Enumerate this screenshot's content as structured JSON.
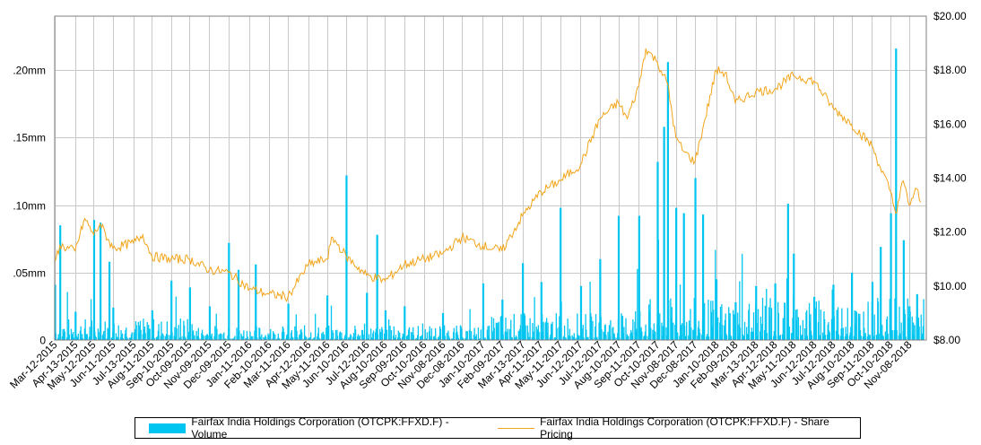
{
  "chart_data": {
    "type": "bar+line",
    "title": "",
    "x_tick_labels": [
      "Mar-12-2015",
      "Apr-13-2015",
      "May-12-2015",
      "Jun-11-2015",
      "Jul-13-2015",
      "Aug-11-2015",
      "Sep-10-2015",
      "Oct-09-2015",
      "Nov-09-2015",
      "Dec-09-2015",
      "Jan-11-2016",
      "Feb-10-2016",
      "Mar-11-2016",
      "Apr-12-2016",
      "May-11-2016",
      "Jun-10-2016",
      "Jul-12-2016",
      "Aug-10-2016",
      "Sep-09-2016",
      "Oct-10-2016",
      "Nov-08-2016",
      "Dec-08-2016",
      "Jan-10-2017",
      "Feb-09-2017",
      "Mar-13-2017",
      "Apr-11-2017",
      "May-11-2017",
      "Jun-12-2017",
      "Jul-12-2017",
      "Aug-10-2017",
      "Sep-11-2017",
      "Oct-10-2017",
      "Nov-08-2017",
      "Dec-08-2017",
      "Jan-10-2018",
      "Feb-09-2018",
      "Mar-13-2018",
      "Apr-12-2018",
      "May-11-2018",
      "Jun-12-2018",
      "Jul-12-2018",
      "Aug-10-2018",
      "Sep-11-2018",
      "Oct-10-2018",
      "Nov-08-2018"
    ],
    "y_left": {
      "ticks": [
        0,
        0.05,
        0.1,
        0.15,
        0.2
      ],
      "tick_labels": [
        "0",
        ".05mm",
        ".10mm",
        ".15mm",
        ".20mm"
      ],
      "range": [
        0,
        0.24
      ],
      "unit": "mm"
    },
    "y_right": {
      "ticks": [
        8,
        10,
        12,
        14,
        16,
        18,
        20
      ],
      "tick_labels": [
        "$8.00",
        "$10.00",
        "$12.00",
        "$14.00",
        "$16.00",
        "$18.00",
        "$20.00"
      ],
      "range": [
        8,
        20
      ]
    },
    "grid": true,
    "legend_placement": "bottom",
    "series": [
      {
        "name": "Fairfax India Holdings Corporation (OTCPK:FFXD.F) - Volume",
        "type": "bar",
        "axis": "left",
        "color": "#00c5f0",
        "spikes": [
          {
            "x": "Mar-12-2015",
            "value": 0.041
          },
          {
            "x": "Mar-20-2015",
            "value": 0.085
          },
          {
            "x": "Apr-13-2015",
            "value": 0.021
          },
          {
            "x": "May-12-2015",
            "value": 0.089
          },
          {
            "x": "May-22-2015",
            "value": 0.087
          },
          {
            "x": "Jun-05-2015",
            "value": 0.058
          },
          {
            "x": "Jun-11-2015",
            "value": 0.024
          },
          {
            "x": "Aug-11-2015",
            "value": 0.022
          },
          {
            "x": "Sep-10-2015",
            "value": 0.044
          },
          {
            "x": "Oct-09-2015",
            "value": 0.039
          },
          {
            "x": "Nov-09-2015",
            "value": 0.025
          },
          {
            "x": "Dec-09-2015",
            "value": 0.072
          },
          {
            "x": "Dec-24-2015",
            "value": 0.052
          },
          {
            "x": "Jan-20-2016",
            "value": 0.056
          },
          {
            "x": "Mar-11-2016",
            "value": 0.027
          },
          {
            "x": "May-11-2016",
            "value": 0.033
          },
          {
            "x": "Jun-10-2016",
            "value": 0.122
          },
          {
            "x": "Jul-12-2016",
            "value": 0.035
          },
          {
            "x": "Jul-28-2016",
            "value": 0.078
          },
          {
            "x": "Aug-10-2016",
            "value": 0.022
          },
          {
            "x": "Sep-09-2016",
            "value": 0.025
          },
          {
            "x": "Nov-08-2016",
            "value": 0.02
          },
          {
            "x": "Jan-10-2017",
            "value": 0.042
          },
          {
            "x": "Feb-09-2017",
            "value": 0.03
          },
          {
            "x": "Mar-13-2017",
            "value": 0.057
          },
          {
            "x": "Apr-11-2017",
            "value": 0.043
          },
          {
            "x": "May-11-2017",
            "value": 0.098
          },
          {
            "x": "Jun-12-2017",
            "value": 0.04
          },
          {
            "x": "Jul-12-2017",
            "value": 0.06
          },
          {
            "x": "Aug-10-2017",
            "value": 0.092
          },
          {
            "x": "Sep-11-2017",
            "value": 0.092
          },
          {
            "x": "Oct-10-2017",
            "value": 0.132
          },
          {
            "x": "Oct-20-2017",
            "value": 0.158
          },
          {
            "x": "Oct-26-2017",
            "value": 0.206
          },
          {
            "x": "Nov-08-2017",
            "value": 0.098
          },
          {
            "x": "Nov-20-2017",
            "value": 0.094
          },
          {
            "x": "Dec-08-2017",
            "value": 0.12
          },
          {
            "x": "Dec-20-2017",
            "value": 0.093
          },
          {
            "x": "Jan-10-2018",
            "value": 0.045
          },
          {
            "x": "Feb-09-2018",
            "value": 0.028
          },
          {
            "x": "Mar-13-2018",
            "value": 0.04
          },
          {
            "x": "Apr-12-2018",
            "value": 0.042
          },
          {
            "x": "May-02-2018",
            "value": 0.101
          },
          {
            "x": "May-11-2018",
            "value": 0.064
          },
          {
            "x": "Jun-12-2018",
            "value": 0.032
          },
          {
            "x": "Jul-12-2018",
            "value": 0.041
          },
          {
            "x": "Aug-10-2018",
            "value": 0.05
          },
          {
            "x": "Sep-11-2018",
            "value": 0.043
          },
          {
            "x": "Sep-24-2018",
            "value": 0.069
          },
          {
            "x": "Oct-10-2018",
            "value": 0.094
          },
          {
            "x": "Oct-18-2018",
            "value": 0.216
          },
          {
            "x": "Oct-30-2018",
            "value": 0.074
          },
          {
            "x": "Nov-08-2018",
            "value": 0.025
          },
          {
            "x": "Nov-20-2018",
            "value": 0.034
          }
        ]
      },
      {
        "name": "Fairfax India Holdings Corporation (OTCPK:FFXD.F) - Share Pricing",
        "type": "line",
        "axis": "right",
        "color": "#f2a51a",
        "points": [
          {
            "x": "Mar-12-2015",
            "y": 10.9
          },
          {
            "x": "Mar-20-2015",
            "y": 11.5
          },
          {
            "x": "Apr-13-2015",
            "y": 11.3
          },
          {
            "x": "Apr-28-2015",
            "y": 12.5
          },
          {
            "x": "May-12-2015",
            "y": 11.9
          },
          {
            "x": "May-22-2015",
            "y": 12.3
          },
          {
            "x": "Jun-11-2015",
            "y": 11.4
          },
          {
            "x": "Jul-13-2015",
            "y": 11.6
          },
          {
            "x": "Jul-28-2015",
            "y": 11.9
          },
          {
            "x": "Aug-11-2015",
            "y": 11.1
          },
          {
            "x": "Sep-10-2015",
            "y": 11.0
          },
          {
            "x": "Oct-09-2015",
            "y": 11.0
          },
          {
            "x": "Nov-09-2015",
            "y": 10.6
          },
          {
            "x": "Dec-09-2015",
            "y": 10.5
          },
          {
            "x": "Jan-11-2016",
            "y": 9.9
          },
          {
            "x": "Feb-10-2016",
            "y": 9.7
          },
          {
            "x": "Mar-11-2016",
            "y": 9.6
          },
          {
            "x": "Apr-12-2016",
            "y": 10.8
          },
          {
            "x": "May-11-2016",
            "y": 11.0
          },
          {
            "x": "May-20-2016",
            "y": 11.8
          },
          {
            "x": "Jun-10-2016",
            "y": 11.1
          },
          {
            "x": "Jul-12-2016",
            "y": 10.4
          },
          {
            "x": "Aug-10-2016",
            "y": 10.2
          },
          {
            "x": "Sep-09-2016",
            "y": 10.8
          },
          {
            "x": "Oct-10-2016",
            "y": 11.0
          },
          {
            "x": "Nov-08-2016",
            "y": 11.2
          },
          {
            "x": "Dec-08-2016",
            "y": 11.8
          },
          {
            "x": "Jan-10-2017",
            "y": 11.5
          },
          {
            "x": "Feb-09-2017",
            "y": 11.3
          },
          {
            "x": "Mar-13-2017",
            "y": 12.6
          },
          {
            "x": "Apr-11-2017",
            "y": 13.5
          },
          {
            "x": "May-11-2017",
            "y": 13.9
          },
          {
            "x": "Jun-12-2017",
            "y": 14.5
          },
          {
            "x": "Jul-12-2017",
            "y": 16.2
          },
          {
            "x": "Aug-10-2017",
            "y": 16.8
          },
          {
            "x": "Aug-24-2017",
            "y": 16.2
          },
          {
            "x": "Sep-11-2017",
            "y": 17.4
          },
          {
            "x": "Sep-22-2017",
            "y": 18.8
          },
          {
            "x": "Oct-10-2017",
            "y": 18.3
          },
          {
            "x": "Oct-26-2017",
            "y": 17.5
          },
          {
            "x": "Nov-08-2017",
            "y": 15.5
          },
          {
            "x": "Nov-20-2017",
            "y": 15.0
          },
          {
            "x": "Dec-08-2017",
            "y": 14.6
          },
          {
            "x": "Dec-20-2017",
            "y": 15.8
          },
          {
            "x": "Jan-10-2018",
            "y": 18.0
          },
          {
            "x": "Jan-24-2018",
            "y": 17.9
          },
          {
            "x": "Feb-09-2018",
            "y": 16.8
          },
          {
            "x": "Mar-13-2018",
            "y": 17.2
          },
          {
            "x": "Apr-12-2018",
            "y": 17.3
          },
          {
            "x": "May-11-2018",
            "y": 17.8
          },
          {
            "x": "Jun-12-2018",
            "y": 17.6
          },
          {
            "x": "Jul-12-2018",
            "y": 16.6
          },
          {
            "x": "Aug-10-2018",
            "y": 16.0
          },
          {
            "x": "Sep-11-2018",
            "y": 15.2
          },
          {
            "x": "Sep-24-2018",
            "y": 14.4
          },
          {
            "x": "Oct-10-2018",
            "y": 13.5
          },
          {
            "x": "Oct-18-2018",
            "y": 12.7
          },
          {
            "x": "Oct-30-2018",
            "y": 13.9
          },
          {
            "x": "Nov-08-2018",
            "y": 13.0
          },
          {
            "x": "Nov-20-2018",
            "y": 13.6
          },
          {
            "x": "Nov-26-2018",
            "y": 13.1
          }
        ]
      }
    ]
  }
}
